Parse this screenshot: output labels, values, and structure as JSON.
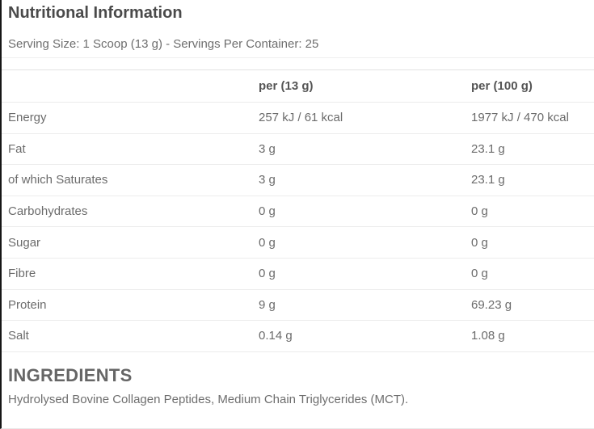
{
  "page": {
    "title": "Nutritional Information",
    "serving_info": "Serving Size: 1 Scoop (13 g) - Servings Per Container: 25"
  },
  "table": {
    "columns": {
      "label": "",
      "per_serving": "per (13 g)",
      "per_100g": "per (100 g)"
    },
    "rows": [
      {
        "label": "Energy",
        "per_serving": "257 kJ / 61 kcal",
        "per_100g": "1977 kJ / 470 kcal"
      },
      {
        "label": "Fat",
        "per_serving": "3 g",
        "per_100g": "23.1 g"
      },
      {
        "label": "of which Saturates",
        "per_serving": "3 g",
        "per_100g": "23.1 g"
      },
      {
        "label": "Carbohydrates",
        "per_serving": "0 g",
        "per_100g": "0 g"
      },
      {
        "label": "Sugar",
        "per_serving": "0 g",
        "per_100g": "0 g"
      },
      {
        "label": "Fibre",
        "per_serving": "0 g",
        "per_100g": "0 g"
      },
      {
        "label": "Protein",
        "per_serving": "9 g",
        "per_100g": "69.23 g"
      },
      {
        "label": "Salt",
        "per_serving": "0.14 g",
        "per_100g": "1.08 g"
      }
    ]
  },
  "ingredients": {
    "heading": "INGREDIENTS",
    "text": "Hydrolysed Bovine Collagen Peptides, Medium Chain Triglycerides (MCT)."
  },
  "colors": {
    "left_border": "#161616",
    "row_divider": "#ececec",
    "title_text": "#4a4a4a",
    "body_text": "#6b6b6b"
  }
}
